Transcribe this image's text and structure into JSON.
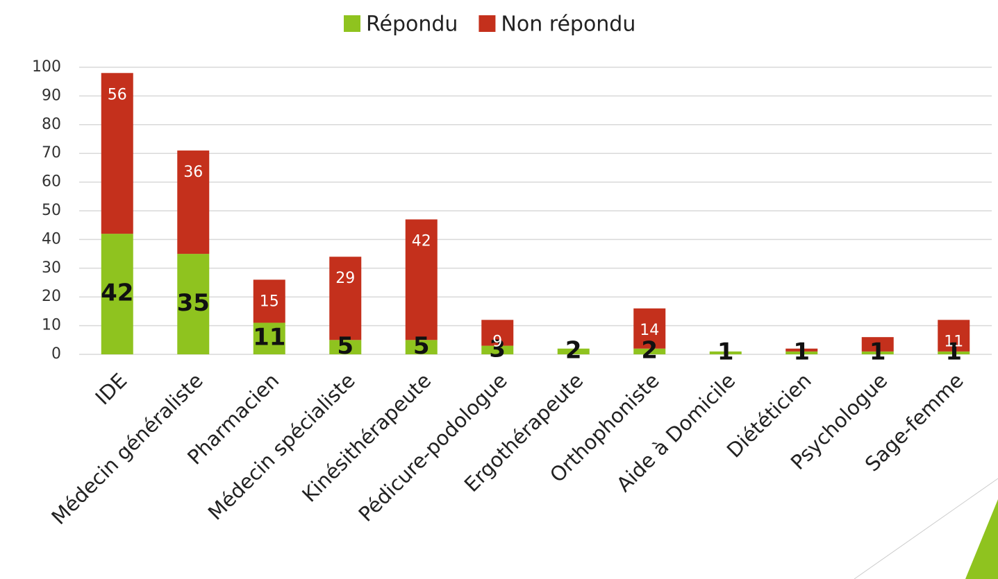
{
  "chart_data": {
    "type": "stacked_bar",
    "categories": [
      "IDE",
      "Médecin généraliste",
      "Pharmacien",
      "Médecin spécialiste",
      "Kinésithérapeute",
      "Pédicure-podologue",
      "Ergothérapeute",
      "Orthophoniste",
      "Aide à Domicile",
      "Diététicien",
      "Psychologue",
      "Sage-femme"
    ],
    "series": [
      {
        "name": "Répondu",
        "color": "#8fc31f",
        "values": [
          42,
          35,
          11,
          5,
          5,
          3,
          2,
          2,
          1,
          1,
          1,
          1
        ]
      },
      {
        "name": "Non répondu",
        "color": "#c4301c",
        "values": [
          56,
          36,
          15,
          29,
          42,
          9,
          0,
          14,
          0,
          1,
          5,
          11
        ],
        "value_labels": [
          "56",
          "36",
          "15",
          "29",
          "42",
          "9",
          null,
          "14",
          null,
          null,
          null,
          "11"
        ]
      }
    ],
    "ylim": [
      0,
      100
    ],
    "yticks": [
      0,
      10,
      20,
      30,
      40,
      50,
      60,
      70,
      80,
      90,
      100
    ],
    "grid": true,
    "legend": "top"
  }
}
